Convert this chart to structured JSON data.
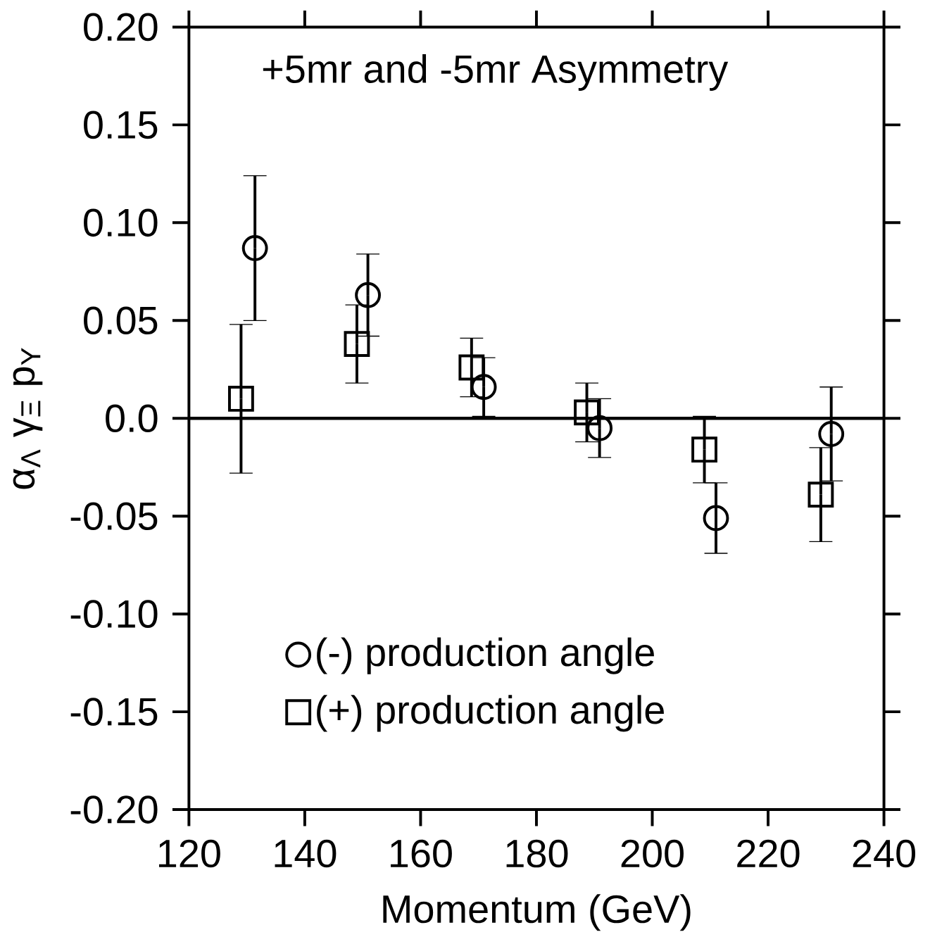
{
  "chart_data": {
    "type": "scatter",
    "title": "+5mr and -5mr Asymmetry",
    "xlabel": "Momentum (GeV)",
    "ylabel": "α$_{Λ}$ γ$_{Ξ}$ p$_{Y}$",
    "xlim": [
      120,
      240
    ],
    "xticks": [
      120,
      140,
      160,
      180,
      200,
      220,
      240
    ],
    "ylim": [
      -0.2,
      0.2
    ],
    "yticks": [
      {
        "value": -0.2,
        "label": "-0.20"
      },
      {
        "value": -0.15,
        "label": "-0.15"
      },
      {
        "value": -0.1,
        "label": "-0.10"
      },
      {
        "value": -0.05,
        "label": "-0.05"
      },
      {
        "value": 0,
        "label": "0.0"
      },
      {
        "value": 0.05,
        "label": "0.05"
      },
      {
        "value": 0.1,
        "label": "0.10"
      },
      {
        "value": 0.15,
        "label": "0.15"
      },
      {
        "value": 0.2,
        "label": "0.20"
      }
    ],
    "series": [
      {
        "name": "(-) production angle",
        "color": "#000000",
        "marker": "circle",
        "x": [
          131.4,
          150.9,
          170.9,
          190.9,
          211.0,
          230.9
        ],
        "values": [
          0.087,
          0.063,
          0.016,
          -0.005,
          -0.051,
          -0.008
        ],
        "errors": [
          0.037,
          0.021,
          0.015,
          0.015,
          0.018,
          0.024
        ]
      },
      {
        "name": "(+) production angle",
        "color": "#000000",
        "marker": "square",
        "x": [
          129.0,
          149.0,
          168.8,
          188.7,
          209.0,
          229.1
        ],
        "values": [
          0.01,
          0.038,
          0.026,
          0.003,
          -0.016,
          -0.039
        ],
        "errors": [
          0.038,
          0.02,
          0.015,
          0.015,
          0.017,
          0.024
        ]
      }
    ],
    "ref_lines": [
      {
        "axis": "y",
        "value": 0
      }
    ],
    "legend": "bottom left",
    "grid": false
  }
}
